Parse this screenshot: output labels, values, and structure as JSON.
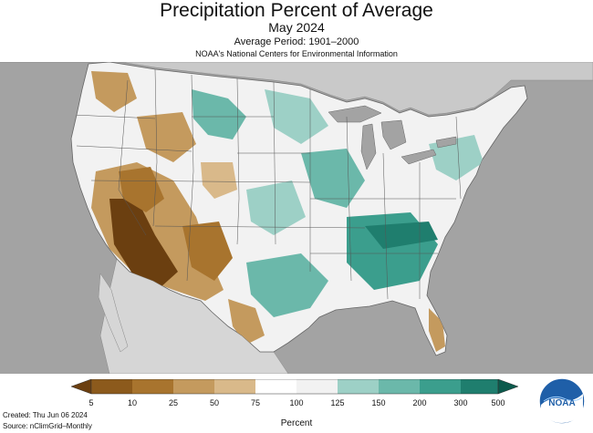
{
  "header": {
    "title": "Precipitation Percent of Average",
    "subtitle": "May 2024",
    "period": "Average Period: 1901–2000",
    "source": "NOAA's National Centers for Environmental Information"
  },
  "legend": {
    "unit_label": "Percent",
    "ticks": [
      "5",
      "10",
      "25",
      "50",
      "75",
      "100",
      "125",
      "150",
      "200",
      "300",
      "500"
    ],
    "colors": [
      "#8c5a1c",
      "#a8742e",
      "#c49a5e",
      "#d9b98a",
      "#ffffff",
      "#f2f2f2",
      "#9dd0c6",
      "#6bb8aa",
      "#3b9e8d",
      "#1f7e6e",
      "#0b5a4c"
    ]
  },
  "footer": {
    "created": "Created: Thu Jun 06 2024",
    "source": "Source: nClimGrid–Monthly"
  },
  "logo": {
    "text": "NOAA",
    "icon": "noaa-logo"
  },
  "map": {
    "ocean_color": "#a3a3a3",
    "land_color": "#f2f2f2",
    "dry_colors": [
      "#6b3f10",
      "#a8742e",
      "#c49a5e",
      "#d9b98a"
    ],
    "wet_colors": [
      "#9dd0c6",
      "#6bb8aa",
      "#3b9e8d"
    ]
  }
}
